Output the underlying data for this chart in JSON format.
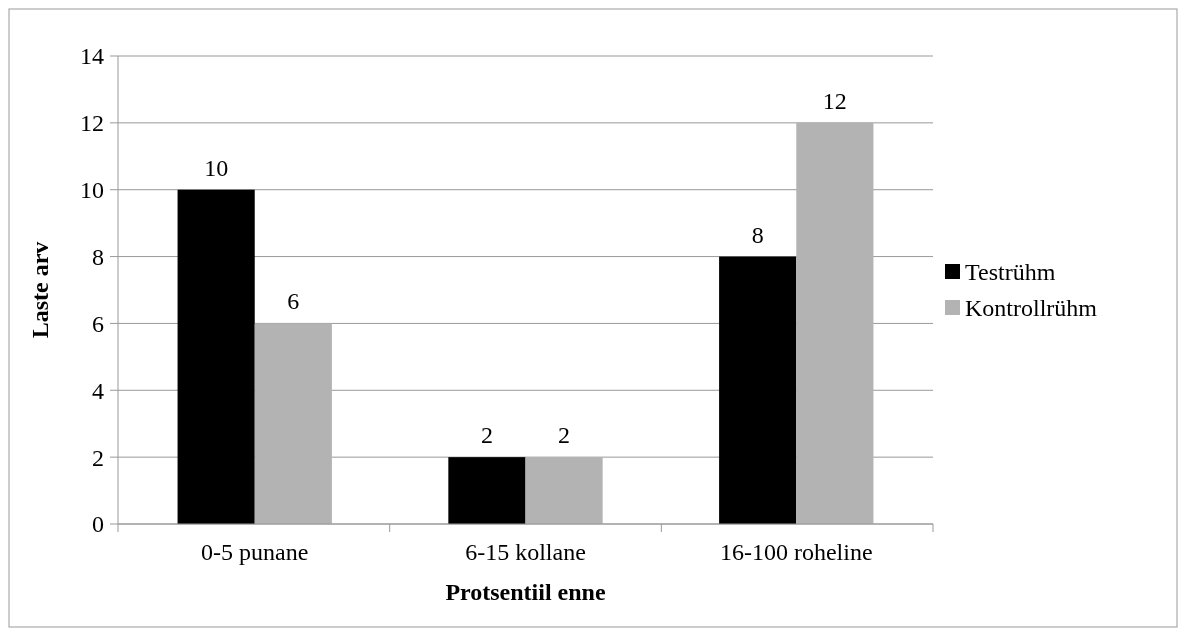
{
  "chart_data": {
    "type": "bar",
    "xlabel": "Protsentiil enne",
    "ylabel": "Laste arv",
    "categories": [
      "0-5 punane",
      "6-15 kollane",
      "16-100 roheline"
    ],
    "series": [
      {
        "name": "Testrühm",
        "color": "#000000",
        "values": [
          10,
          2,
          8
        ]
      },
      {
        "name": "Kontrollrühm",
        "color": "#b3b3b3",
        "values": [
          6,
          2,
          12
        ]
      }
    ],
    "ylim": [
      0,
      14
    ],
    "yticks": [
      0,
      2,
      4,
      6,
      8,
      10,
      12,
      14
    ],
    "grid": "y",
    "legend": "right",
    "data_labels": true
  }
}
